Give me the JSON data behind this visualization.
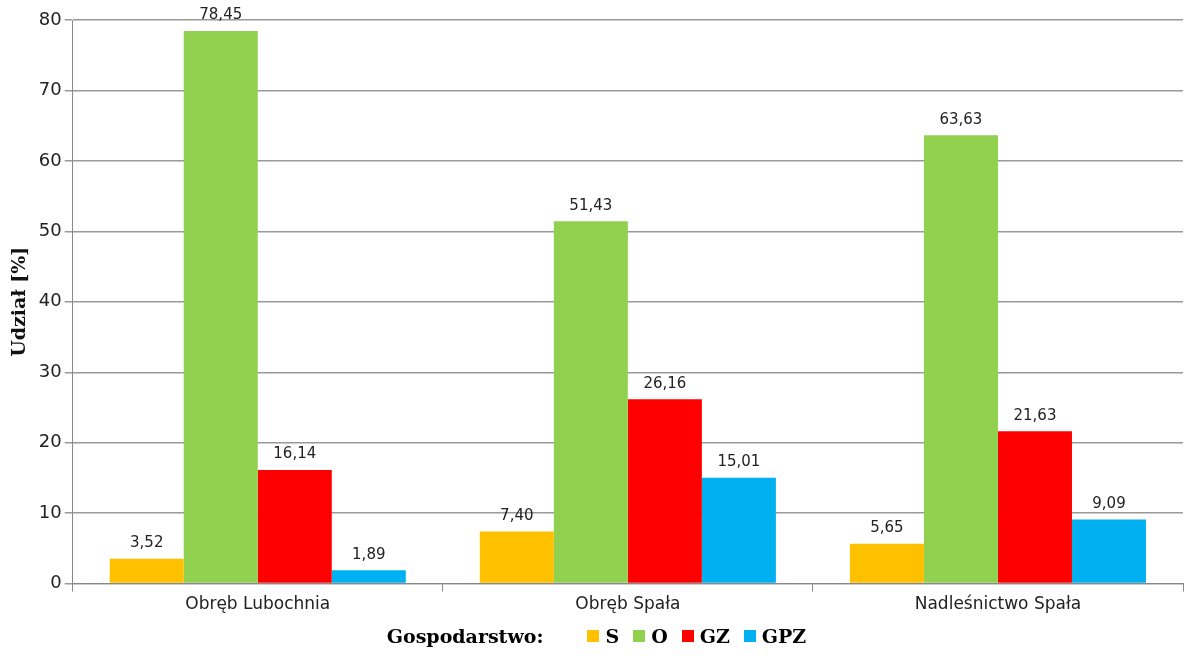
{
  "chart_data": {
    "type": "bar",
    "ylabel": "Udział [%]",
    "legend_title": "Gospodarstwo:",
    "categories": [
      "Obręb Lubochnia",
      "Obręb Spała",
      "Nadleśnictwo Spała"
    ],
    "series": [
      {
        "name": "S",
        "color": "#ffc000",
        "values": [
          3.52,
          7.4,
          5.65
        ],
        "value_labels": [
          "3,52",
          "7,40",
          "5,65"
        ]
      },
      {
        "name": "O",
        "color": "#92d050",
        "values": [
          78.45,
          51.43,
          63.63
        ],
        "value_labels": [
          "78,45",
          "51,43",
          "63,63"
        ]
      },
      {
        "name": "GZ",
        "color": "#ff0000",
        "values": [
          16.14,
          26.16,
          21.63
        ],
        "value_labels": [
          "16,14",
          "26,16",
          "21,63"
        ]
      },
      {
        "name": "GPZ",
        "color": "#00b0f0",
        "values": [
          1.89,
          15.01,
          9.09
        ],
        "value_labels": [
          "1,89",
          "15,01",
          "9,09"
        ]
      }
    ],
    "ylim": [
      0,
      80
    ],
    "yticks": [
      0,
      10,
      20,
      30,
      40,
      50,
      60,
      70,
      80
    ],
    "grid": "y",
    "legend": "bottom"
  }
}
